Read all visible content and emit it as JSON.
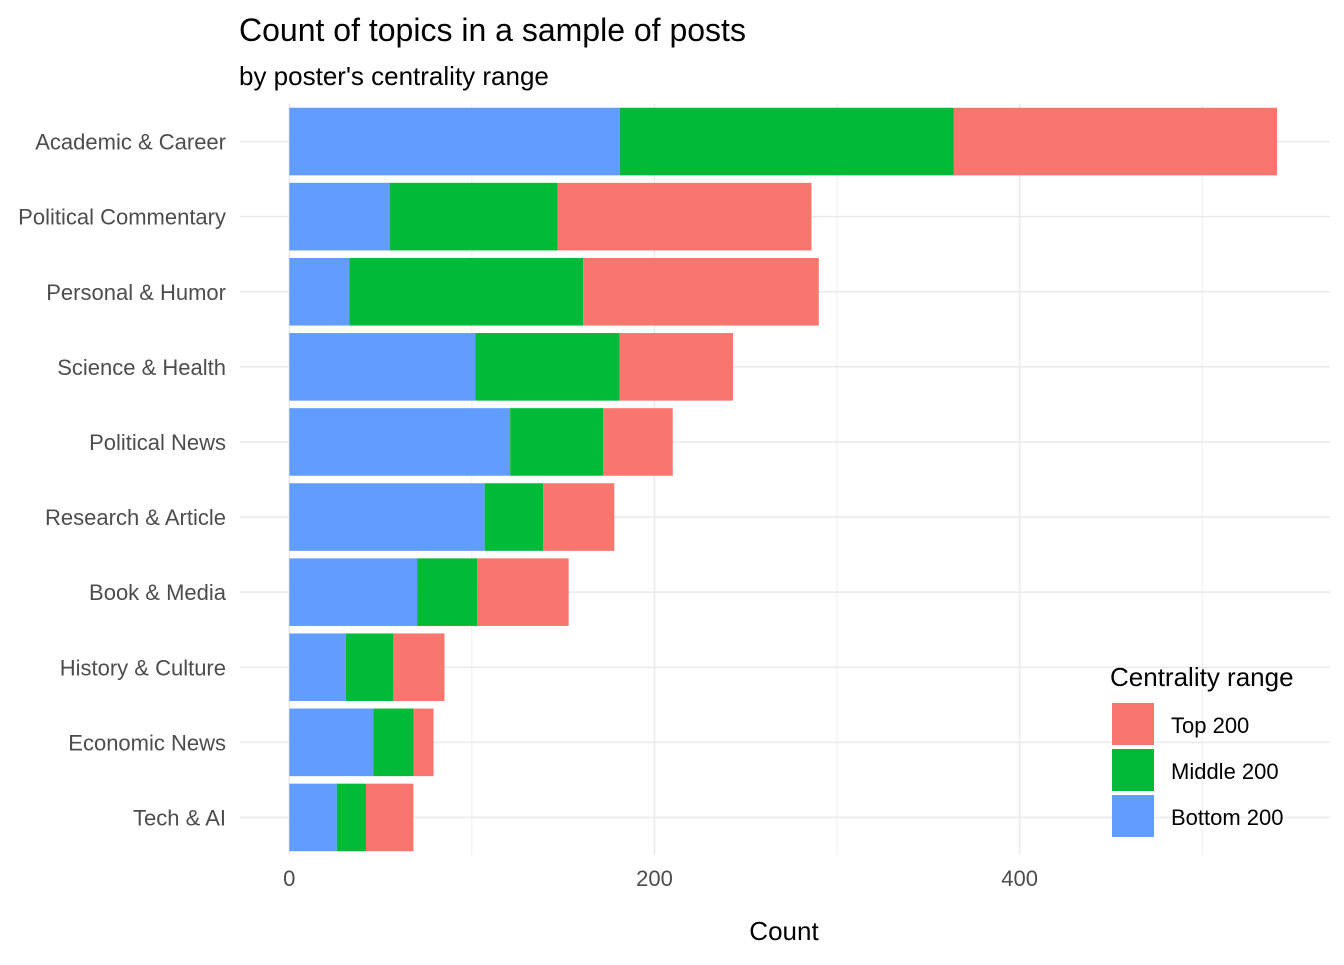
{
  "chart_data": {
    "type": "bar",
    "orientation": "horizontal",
    "stacked": true,
    "title": "Count of topics in a sample of posts",
    "subtitle": "by poster's centrality range",
    "xlabel": "Count",
    "ylabel": "",
    "xlim": [
      -27,
      570
    ],
    "xticks": [
      0,
      200,
      400
    ],
    "grid": true,
    "legend": {
      "title": "Centrality range",
      "placement": "bottom-right"
    },
    "categories": [
      "Academic & Career",
      "Political Commentary",
      "Personal & Humor",
      "Science & Health",
      "Political News",
      "Research & Article",
      "Book & Media",
      "History & Culture",
      "Economic News",
      "Tech & AI"
    ],
    "series": [
      {
        "name": "Bottom 200",
        "color": "#619CFF",
        "values": [
          181,
          55,
          33,
          102,
          121,
          107,
          70,
          31,
          46,
          26
        ]
      },
      {
        "name": "Middle 200",
        "color": "#00BA38",
        "values": [
          183,
          92,
          128,
          79,
          51,
          32,
          33,
          26,
          22,
          16
        ]
      },
      {
        "name": "Top 200",
        "color": "#F8766D",
        "values": [
          177,
          139,
          129,
          62,
          38,
          39,
          50,
          28,
          11,
          26
        ]
      }
    ],
    "legend_order": [
      "Top 200",
      "Middle 200",
      "Bottom 200"
    ]
  }
}
